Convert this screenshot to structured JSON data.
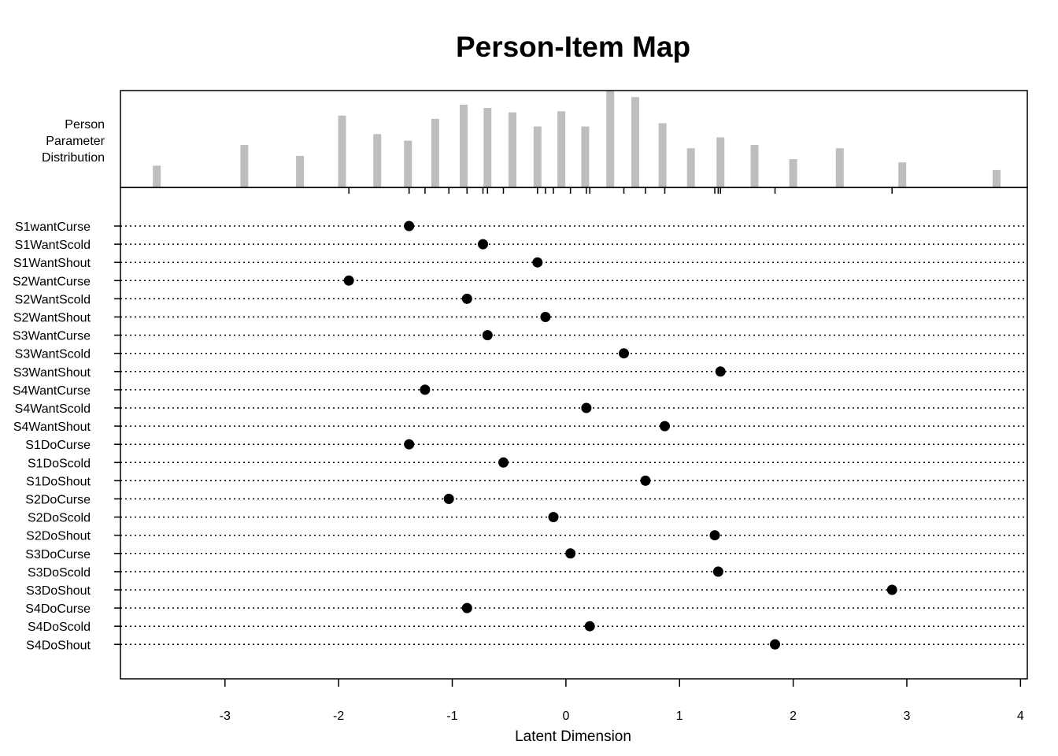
{
  "chart_data": {
    "type": "scatter",
    "title": "Person-Item Map",
    "xlabel": "Latent Dimension",
    "xlim": [
      -3.92,
      4.06
    ],
    "xticks": [
      -3,
      -2,
      -1,
      0,
      1,
      2,
      3,
      4
    ],
    "grid": false,
    "histogram": {
      "label_lines": [
        "Person",
        "Parameter",
        "Distribution"
      ],
      "color": "#bebebe",
      "bars": [
        {
          "x": -3.6,
          "freq": 2.0
        },
        {
          "x": -2.83,
          "freq": 3.9
        },
        {
          "x": -2.34,
          "freq": 2.9
        },
        {
          "x": -1.97,
          "freq": 6.6
        },
        {
          "x": -1.66,
          "freq": 4.9
        },
        {
          "x": -1.39,
          "freq": 4.3
        },
        {
          "x": -1.15,
          "freq": 6.3
        },
        {
          "x": -0.9,
          "freq": 7.6
        },
        {
          "x": -0.69,
          "freq": 7.3
        },
        {
          "x": -0.47,
          "freq": 6.9
        },
        {
          "x": -0.25,
          "freq": 5.6
        },
        {
          "x": -0.04,
          "freq": 7.0
        },
        {
          "x": 0.17,
          "freq": 5.6
        },
        {
          "x": 0.39,
          "freq": 8.9
        },
        {
          "x": 0.61,
          "freq": 8.3
        },
        {
          "x": 0.85,
          "freq": 5.9
        },
        {
          "x": 1.1,
          "freq": 3.6
        },
        {
          "x": 1.36,
          "freq": 4.6
        },
        {
          "x": 1.66,
          "freq": 3.9
        },
        {
          "x": 2.0,
          "freq": 2.6
        },
        {
          "x": 2.41,
          "freq": 3.6
        },
        {
          "x": 2.96,
          "freq": 2.3
        },
        {
          "x": 3.79,
          "freq": 1.6
        }
      ]
    },
    "items": [
      {
        "name": "S1wantCurse",
        "location": -1.38
      },
      {
        "name": "S1WantScold",
        "location": -0.73
      },
      {
        "name": "S1WantShout",
        "location": -0.25
      },
      {
        "name": "S2WantCurse",
        "location": -1.91
      },
      {
        "name": "S2WantScold",
        "location": -0.87
      },
      {
        "name": "S2WantShout",
        "location": -0.18
      },
      {
        "name": "S3WantCurse",
        "location": -0.69
      },
      {
        "name": "S3WantScold",
        "location": 0.51
      },
      {
        "name": "S3WantShout",
        "location": 1.36
      },
      {
        "name": "S4WantCurse",
        "location": -1.24
      },
      {
        "name": "S4WantScold",
        "location": 0.18
      },
      {
        "name": "S4WantShout",
        "location": 0.87
      },
      {
        "name": "S1DoCurse",
        "location": -1.38
      },
      {
        "name": "S1DoScold",
        "location": -0.55
      },
      {
        "name": "S1DoShout",
        "location": 0.7
      },
      {
        "name": "S2DoCurse",
        "location": -1.03
      },
      {
        "name": "S2DoScold",
        "location": -0.11
      },
      {
        "name": "S2DoShout",
        "location": 1.31
      },
      {
        "name": "S3DoCurse",
        "location": 0.04
      },
      {
        "name": "S3DoScold",
        "location": 1.34
      },
      {
        "name": "S3DoShout",
        "location": 2.87
      },
      {
        "name": "S4DoCurse",
        "location": -0.87
      },
      {
        "name": "S4DoScold",
        "location": 0.21
      },
      {
        "name": "S4DoShout",
        "location": 1.84
      }
    ],
    "colors": {
      "bars": "#bebebe",
      "points": "#000000",
      "frame": "#000000"
    }
  }
}
